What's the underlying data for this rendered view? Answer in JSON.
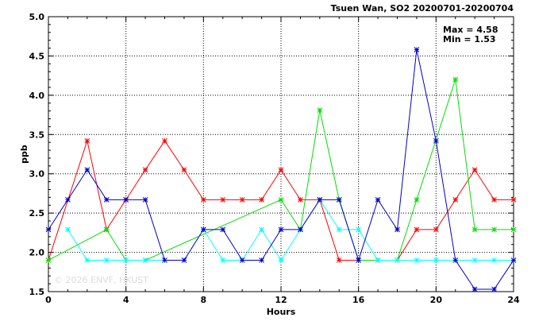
{
  "chart_data": {
    "type": "line",
    "title": "Tsuen Wan, SO2 20200701-20200704",
    "xlabel": "Hours",
    "ylabel": "ppb",
    "xlim": [
      0,
      24
    ],
    "ylim": [
      1.5,
      5.0
    ],
    "xticks": [
      0,
      4,
      8,
      12,
      16,
      20,
      24
    ],
    "yticks": [
      1.5,
      2.0,
      2.5,
      3.0,
      3.5,
      4.0,
      4.5,
      5.0
    ],
    "ytick_labels": [
      "1.5",
      "2.0",
      "2.5",
      "3.0",
      "3.5",
      "4.0",
      "4.5",
      "5.0"
    ],
    "grid": true,
    "annotations": {
      "max_text": "Max = 4.58",
      "min_text": "Min = 1.53"
    },
    "watermark": "© 2026  ENVF, HKUST",
    "series": [
      {
        "color": "#ff0000",
        "points": [
          [
            0,
            1.9
          ],
          [
            2,
            3.42
          ],
          [
            3,
            2.29
          ],
          [
            4,
            2.67
          ],
          [
            5,
            3.05
          ],
          [
            6,
            3.42
          ],
          [
            7,
            3.05
          ],
          [
            8,
            2.67
          ],
          [
            9,
            2.67
          ],
          [
            10,
            2.67
          ],
          [
            11,
            2.67
          ],
          [
            12,
            3.05
          ],
          [
            13,
            2.67
          ],
          [
            14,
            2.67
          ],
          [
            15,
            1.9
          ],
          [
            16,
            1.9
          ],
          [
            17,
            1.9
          ],
          [
            18,
            1.9
          ],
          [
            19,
            2.29
          ],
          [
            20,
            2.29
          ],
          [
            21,
            2.67
          ],
          [
            22,
            3.05
          ],
          [
            23,
            2.67
          ],
          [
            24,
            2.67
          ]
        ]
      },
      {
        "color": "#00e000",
        "points": [
          [
            0,
            1.9
          ],
          [
            3,
            2.29
          ],
          [
            4,
            1.9
          ],
          [
            5,
            1.9
          ],
          [
            12,
            2.67
          ],
          [
            13,
            2.29
          ],
          [
            14,
            3.81
          ],
          [
            15,
            2.67
          ],
          [
            16,
            1.9
          ],
          [
            17,
            1.9
          ],
          [
            18,
            1.9
          ],
          [
            19,
            2.67
          ],
          [
            21,
            4.2
          ],
          [
            22,
            2.29
          ],
          [
            23,
            2.29
          ],
          [
            24,
            2.29
          ]
        ]
      },
      {
        "color": "#00ffff",
        "points": [
          [
            1,
            2.29
          ],
          [
            2,
            1.9
          ],
          [
            3,
            1.9
          ],
          [
            4,
            1.9
          ],
          [
            5,
            1.9
          ],
          [
            6,
            1.9
          ],
          [
            7,
            1.9
          ],
          [
            8,
            2.29
          ],
          [
            9,
            1.9
          ],
          [
            10,
            1.9
          ],
          [
            11,
            2.29
          ],
          [
            12,
            1.9
          ],
          [
            13,
            2.29
          ],
          [
            14,
            2.67
          ],
          [
            15,
            2.29
          ],
          [
            16,
            2.29
          ],
          [
            17,
            1.9
          ],
          [
            18,
            1.9
          ],
          [
            19,
            1.9
          ],
          [
            20,
            1.9
          ],
          [
            21,
            1.9
          ],
          [
            22,
            1.9
          ],
          [
            23,
            1.9
          ],
          [
            24,
            1.9
          ]
        ]
      },
      {
        "color": "#0000cc",
        "points": [
          [
            0,
            2.29
          ],
          [
            1,
            2.67
          ],
          [
            2,
            3.05
          ],
          [
            3,
            2.67
          ],
          [
            4,
            2.67
          ],
          [
            5,
            2.67
          ],
          [
            6,
            1.9
          ],
          [
            7,
            1.9
          ],
          [
            8,
            2.29
          ],
          [
            9,
            2.29
          ],
          [
            10,
            1.9
          ],
          [
            11,
            1.9
          ],
          [
            12,
            2.29
          ],
          [
            13,
            2.29
          ],
          [
            14,
            2.67
          ],
          [
            15,
            2.67
          ],
          [
            16,
            1.9
          ],
          [
            17,
            2.67
          ],
          [
            18,
            2.29
          ],
          [
            19,
            4.58
          ],
          [
            20,
            3.42
          ],
          [
            21,
            1.9
          ],
          [
            22,
            1.53
          ],
          [
            23,
            1.53
          ],
          [
            24,
            1.9
          ]
        ]
      }
    ]
  }
}
